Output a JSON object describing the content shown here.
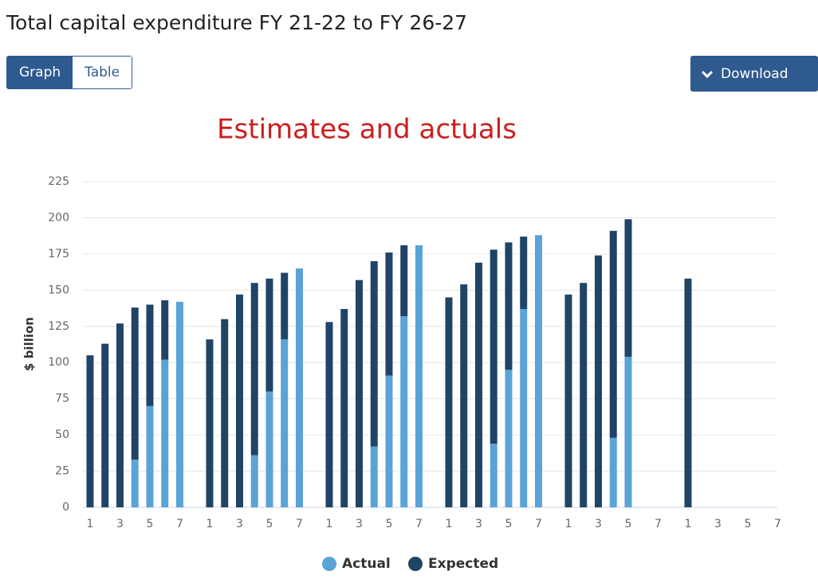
{
  "header": {
    "title": "Total capital expenditure FY 21-22 to FY 26-27",
    "tabs": [
      "Graph",
      "Table"
    ],
    "download": "Download"
  },
  "chart_data": {
    "type": "bar",
    "stacked": true,
    "title": "Estimates and actuals",
    "y_label": "$ billion",
    "categories": [
      "1",
      null,
      "3",
      null,
      "5",
      null,
      "7",
      null,
      "1",
      null,
      "3",
      null,
      "5",
      null,
      "7",
      null,
      "1",
      null,
      "3",
      null,
      "5",
      null,
      "7",
      null,
      "1",
      null,
      "3",
      null,
      "5",
      null,
      "7",
      null,
      "1",
      null,
      "3",
      null,
      "5",
      null,
      "7",
      null,
      "1",
      null,
      "3",
      null,
      "5",
      null,
      "7",
      null
    ],
    "series": [
      {
        "name": "Actual",
        "color": "#5aa3d6",
        "values": [
          null,
          null,
          null,
          33,
          70,
          102,
          142,
          null,
          null,
          null,
          null,
          36,
          80,
          116,
          165,
          null,
          null,
          null,
          null,
          42,
          91,
          132,
          181,
          null,
          null,
          null,
          null,
          44,
          95,
          137,
          188,
          null,
          null,
          null,
          null,
          48,
          104,
          null,
          null,
          null,
          null,
          null,
          null,
          null,
          null,
          null,
          null,
          null
        ]
      },
      {
        "name": "Expected",
        "color": "#1f4466",
        "values": [
          105,
          113,
          127,
          105,
          70,
          41,
          null,
          null,
          116,
          130,
          147,
          119,
          78,
          46,
          null,
          null,
          128,
          137,
          157,
          128,
          85,
          49,
          null,
          null,
          145,
          154,
          169,
          134,
          88,
          50,
          null,
          null,
          147,
          155,
          174,
          143,
          95,
          null,
          null,
          null,
          158,
          null,
          null,
          null,
          null,
          null,
          null,
          null
        ]
      }
    ],
    "ylim": [
      0,
      225
    ],
    "yticks": [
      0,
      25,
      50,
      75,
      100,
      125,
      150,
      175,
      200,
      225
    ],
    "grid": true
  }
}
